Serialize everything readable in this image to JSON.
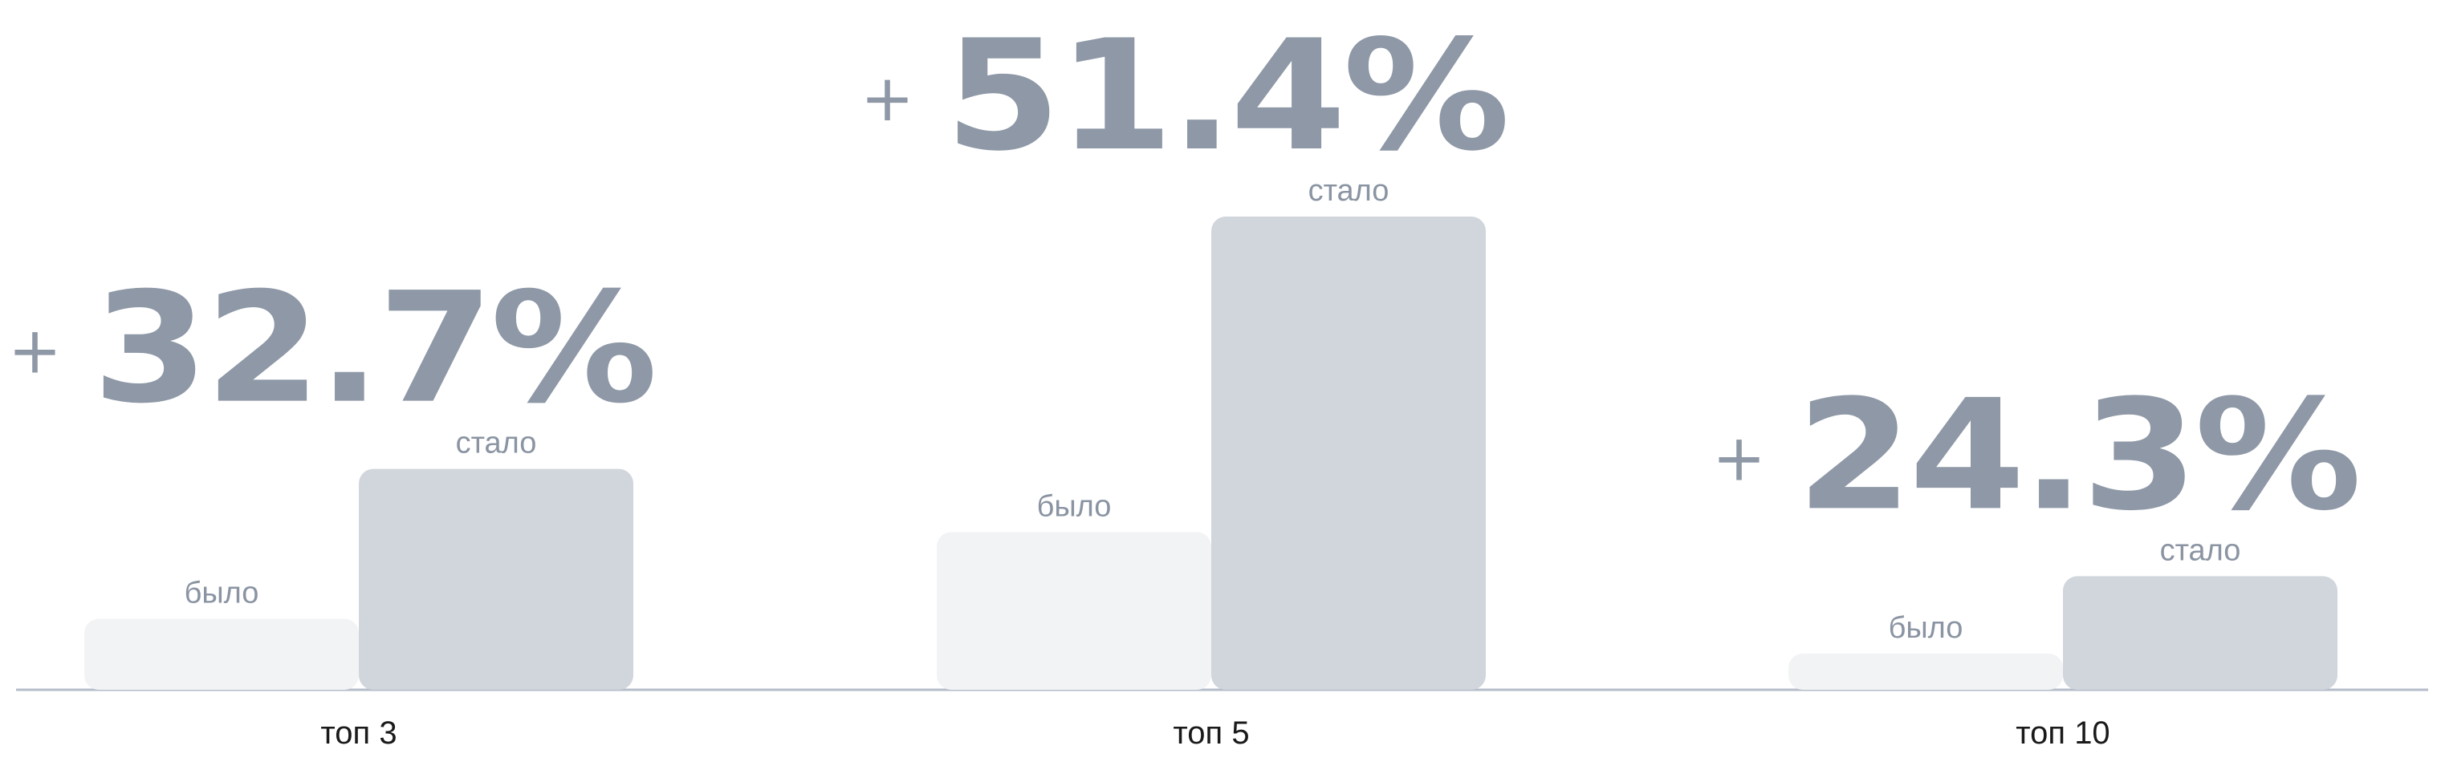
{
  "chart_data": {
    "type": "bar",
    "categories": [
      "топ 3",
      "топ 5",
      "топ 10"
    ],
    "series": [
      {
        "name": "было",
        "values": [
          45,
          100,
          23
        ]
      },
      {
        "name": "стало",
        "values": [
          140,
          300,
          72
        ]
      }
    ],
    "annotations": [
      {
        "category": "топ 3",
        "sign": "+",
        "value": "32.7%"
      },
      {
        "category": "топ 5",
        "sign": "+",
        "value": "51.4%"
      },
      {
        "category": "топ 10",
        "sign": "+",
        "value": "24.3%"
      }
    ],
    "ylim": [
      0,
      300
    ],
    "grid": false,
    "legend": "none",
    "colors": {
      "before": "#F2F3F5",
      "after": "#D1D5DC",
      "annotation": "#8E98A6",
      "bar_label": "#8A94A2",
      "axis": "#B5BDC8",
      "category_label": "#1A1A1A"
    }
  }
}
